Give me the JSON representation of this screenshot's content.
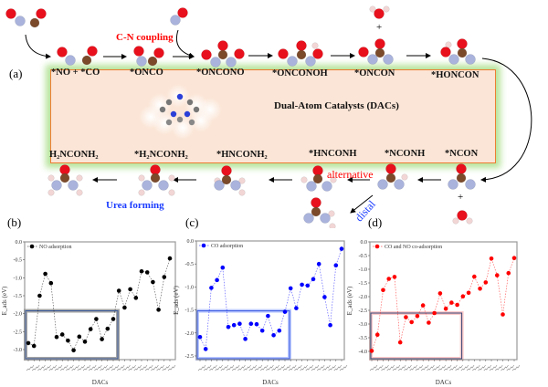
{
  "panel_a": {
    "label": "(a)",
    "catalyst_title": "Dual-Atom Catalysts (DACs)",
    "step_labels": [
      "*NO + *CO",
      "*ONCO",
      "*ONCONO",
      "*ONCONOH",
      "*ONCON",
      "*HONCON",
      "*NCON",
      "*NCONH",
      "*HNCONH",
      "*HNCONH₂",
      "*H₂NCONH₂",
      "H₂NCONH₂"
    ],
    "annotations": {
      "cn_coupling": "C-N coupling",
      "alternative": "alternative",
      "distal": "distal",
      "urea_forming": "Urea forming",
      "plus": "+"
    },
    "colors": {
      "oxygen": "#e8101c",
      "nitrogen": "#a9b3dc",
      "carbon": "#7b4a2b",
      "hydrogen": "#f2d6d6",
      "box_fill": "#fbe5d6",
      "box_border": "#ed7d31",
      "glow": "#b6e39a",
      "red_text": "#ff0000",
      "blue_text": "#1a3cff"
    }
  },
  "chart_data": [
    {
      "panel": "(b)",
      "type": "line",
      "legend": "NO adsorption",
      "legend_placement": "top-left",
      "xlabel": "DACs",
      "ylabel": "E_ads (eV)",
      "ylim": [
        -3.28,
        0
      ],
      "yticks": [
        0,
        -0.5,
        -1.0,
        -1.5,
        -2.0,
        -2.5,
        -3.0
      ],
      "color": "#000000",
      "values": [
        -2.82,
        -2.9,
        -1.5,
        -0.89,
        -1.15,
        -2.65,
        -2.58,
        -2.75,
        -3.02,
        -2.64,
        -2.78,
        -2.43,
        -2.15,
        -2.71,
        -2.42,
        -2.15,
        -1.36,
        -1.83,
        -1.32,
        -1.56,
        -0.82,
        -0.85,
        -1.12,
        -1.89,
        -0.98,
        -0.46
      ],
      "highlight": {
        "from_index": 0,
        "to_index": 15,
        "upper": -1.92,
        "color": "#7f7f7f",
        "border": "#3a5a9a"
      }
    },
    {
      "panel": "(c)",
      "type": "line",
      "legend": "CO adsorption",
      "legend_placement": "top-left",
      "xlabel": "DACs",
      "ylabel": "E_ads (eV)",
      "ylim": [
        -2.58,
        0
      ],
      "yticks": [
        0,
        -0.5,
        -1.0,
        -1.5,
        -2.0,
        -2.5
      ],
      "color": "#0000ff",
      "values": [
        -2.09,
        -2.35,
        -1.02,
        -0.85,
        -0.58,
        -1.87,
        -1.83,
        -1.8,
        -2.13,
        -1.8,
        -1.81,
        -1.95,
        -1.63,
        -2.05,
        -1.95,
        -1.54,
        -1.03,
        -1.46,
        -0.95,
        -0.97,
        -0.83,
        -0.5,
        -1.22,
        -1.83,
        -0.53,
        -0.17
      ],
      "highlight": {
        "from_index": 0,
        "to_index": 15,
        "upper": -1.52,
        "color": "#9fb4ff",
        "border": "#3355dd"
      }
    },
    {
      "panel": "(d)",
      "type": "line",
      "legend": "CO and NO co-adsorption",
      "legend_placement": "top-left",
      "xlabel": "DACs",
      "ylabel": "E_ads (eV)",
      "ylim": [
        -4.3,
        0
      ],
      "yticks": [
        0,
        -0.5,
        -1.0,
        -1.5,
        -2.0,
        -2.5,
        -3.0,
        -3.5,
        -4.0
      ],
      "color": "#ff0000",
      "values": [
        -3.98,
        -3.39,
        -1.76,
        -1.35,
        -1.28,
        -3.67,
        -2.75,
        -2.93,
        -2.71,
        -2.32,
        -2.95,
        -2.6,
        -1.88,
        -2.44,
        -2.22,
        -2.3,
        -1.99,
        -1.86,
        -1.27,
        -1.71,
        -1.48,
        -0.61,
        -1.22,
        -2.65,
        -1.14,
        -0.59
      ],
      "highlight": {
        "from_index": 0,
        "to_index": 15,
        "upper": -2.6,
        "color": "#ffb3b3",
        "border": "#334477"
      }
    }
  ]
}
